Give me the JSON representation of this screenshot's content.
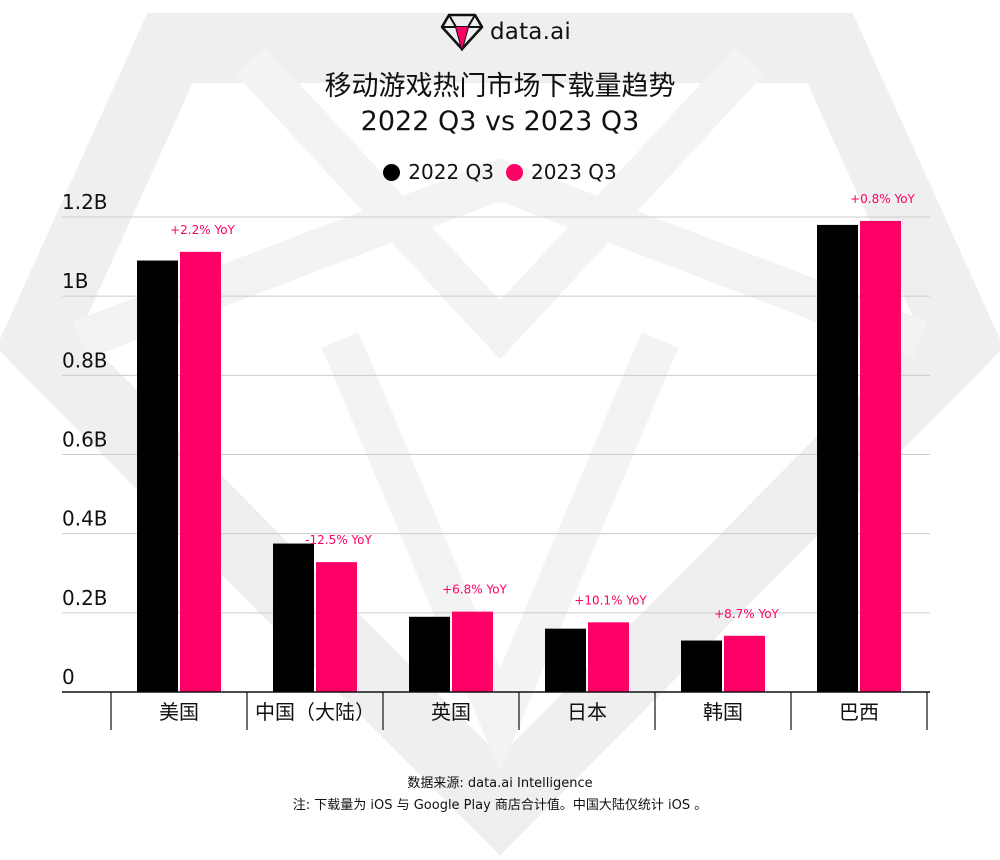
{
  "brand": {
    "name": "data.ai",
    "accent": "#ff0066"
  },
  "title": {
    "line1": "移动游戏热门市场下载量趋势",
    "line2": "2022 Q3 vs 2023 Q3"
  },
  "footer": {
    "source": "数据来源: data.ai Intelligence",
    "note": "注: 下载量为 iOS 与 Google Play 商店合计值。中国大陆仅统计 iOS 。"
  },
  "chart_data": {
    "type": "bar",
    "categories": [
      "美国",
      "中国（大陆）",
      "英国",
      "日本",
      "韩国",
      "巴西"
    ],
    "series": [
      {
        "name": "2022 Q3",
        "color": "#000000",
        "values": [
          1.09,
          0.375,
          0.19,
          0.16,
          0.13,
          1.18
        ]
      },
      {
        "name": "2023 Q3",
        "color": "#ff0066",
        "values": [
          1.112,
          0.328,
          0.203,
          0.176,
          0.142,
          1.19
        ]
      }
    ],
    "annotations": [
      "+2.2% YoY",
      "-12.5% YoY",
      "+6.8% YoY",
      "+10.1% YoY",
      "+8.7% YoY",
      "+0.8% YoY"
    ],
    "ylim": [
      0,
      1.2
    ],
    "yticks": [
      {
        "value": 0,
        "label": "0"
      },
      {
        "value": 0.2,
        "label": "0.2B"
      },
      {
        "value": 0.4,
        "label": "0.4B"
      },
      {
        "value": 0.6,
        "label": "0.6B"
      },
      {
        "value": 0.8,
        "label": "0.8B"
      },
      {
        "value": 1.0,
        "label": "1B"
      },
      {
        "value": 1.2,
        "label": "1.2B"
      }
    ],
    "xlabel": "",
    "ylabel": "",
    "grid": true,
    "legend": "top-center"
  }
}
